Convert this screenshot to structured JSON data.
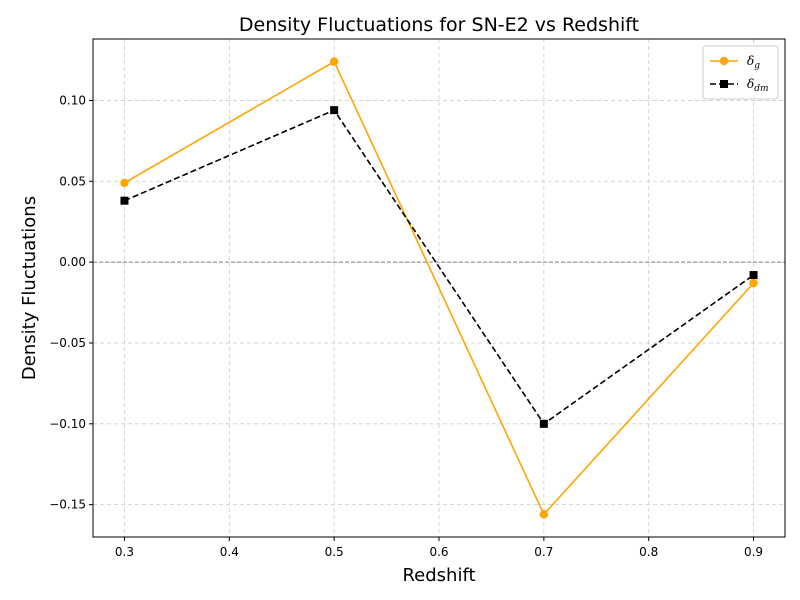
{
  "chart_data": {
    "type": "line",
    "title": "Density Fluctuations for SN-E2 vs Redshift",
    "xlabel": "Redshift",
    "ylabel": "Density Fluctuations",
    "x": [
      0.3,
      0.5,
      0.7,
      0.9
    ],
    "xlim": [
      0.27,
      0.93
    ],
    "ylim": [
      -0.17,
      0.138
    ],
    "xticks": [
      0.3,
      0.4,
      0.5,
      0.6,
      0.7,
      0.8,
      0.9
    ],
    "xtick_labels": [
      "0.3",
      "0.4",
      "0.5",
      "0.6",
      "0.7",
      "0.8",
      "0.9"
    ],
    "yticks": [
      -0.15,
      -0.1,
      -0.05,
      0.0,
      0.05,
      0.1
    ],
    "ytick_labels": [
      "−0.15",
      "−0.10",
      "−0.05",
      "0.00",
      "0.05",
      "0.10"
    ],
    "grid": true,
    "zero_line": true,
    "legend_position": "top-right",
    "series": [
      {
        "name": "δg",
        "symbol": "δ",
        "subscript": "g",
        "values": [
          0.049,
          0.124,
          -0.156,
          -0.013
        ],
        "color": "#ffa500",
        "line_style": "solid",
        "marker": "circle"
      },
      {
        "name": "δdm",
        "symbol": "δ",
        "subscript": "dm",
        "values": [
          0.038,
          0.094,
          -0.1,
          -0.008
        ],
        "color": "#000000",
        "line_style": "dashed",
        "marker": "square"
      }
    ]
  }
}
